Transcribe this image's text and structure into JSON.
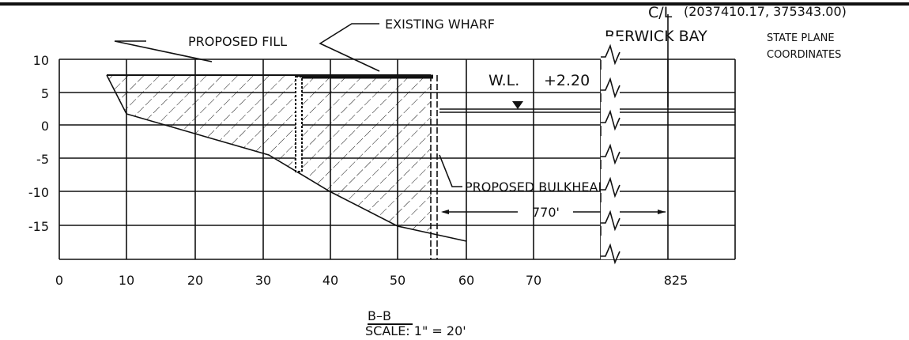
{
  "drawing": {
    "x_labels": [
      "0",
      "10",
      "20",
      "30",
      "40",
      "50",
      "60",
      "70",
      "825"
    ],
    "y_labels": [
      "10",
      "5",
      "0",
      "-5",
      "-10",
      "-15"
    ],
    "proposed_fill": "PROPOSED FILL",
    "existing_wharf": "EXISTING WHARF",
    "centerline": "C/L",
    "coordinates": "(2037410.17, 375343.00)",
    "water_body": "BERWICK BAY",
    "coord_note_1": "STATE PLANE",
    "coord_note_2": "COORDINATES",
    "water_level_label": "W.L.",
    "water_level_value": "+2.20",
    "proposed_bulkhead": "PROPOSED BULKHEAD",
    "distance": "770'",
    "section": "B–B",
    "scale": "SCALE: 1\" = 20'"
  }
}
